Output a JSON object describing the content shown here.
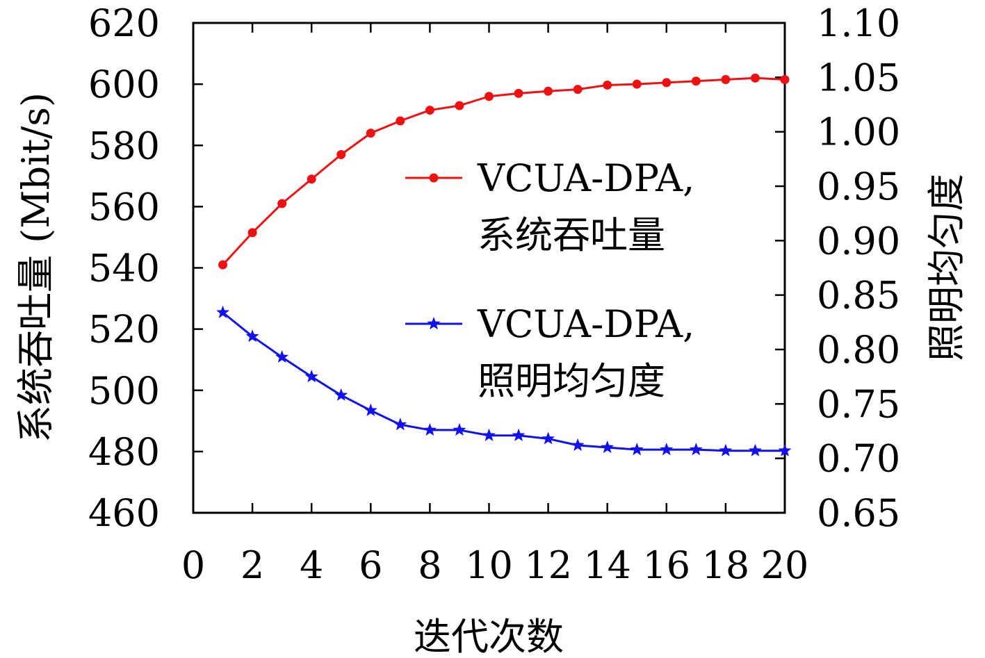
{
  "chart_data": {
    "type": "line",
    "xlabel": "迭代次数",
    "ylabel_left": "系统吞吐量 (Mbit/s)",
    "ylabel_right": "照明均匀度",
    "xlim": [
      0,
      20
    ],
    "ylim_left": [
      460,
      620
    ],
    "ylim_right": [
      0.65,
      1.1
    ],
    "x_ticks": [
      "0",
      "2",
      "4",
      "6",
      "8",
      "10",
      "12",
      "14",
      "16",
      "18",
      "20"
    ],
    "y_left_ticks": [
      "460",
      "480",
      "500",
      "520",
      "540",
      "560",
      "580",
      "600",
      "620"
    ],
    "y_right_ticks": [
      "0.65",
      "0.70",
      "0.75",
      "0.80",
      "0.85",
      "0.90",
      "0.95",
      "1.00",
      "1.05",
      "1.10"
    ],
    "grid": false,
    "legend_position": "right-center",
    "x": [
      1,
      2,
      3,
      4,
      5,
      6,
      7,
      8,
      9,
      10,
      11,
      12,
      13,
      14,
      15,
      16,
      17,
      18,
      19,
      20
    ],
    "series": [
      {
        "name": "VCUA-DPA,\n系统吞吐量",
        "legend_line1": "VCUA-DPA,",
        "legend_line2": "系统吞吐量",
        "axis": "left",
        "marker": "circle",
        "color": "#ee1111",
        "values": [
          541,
          551.5,
          561,
          569,
          577,
          584,
          588,
          591.5,
          593,
          596,
          597,
          597.7,
          598.3,
          599.7,
          600,
          600.5,
          601,
          601.5,
          602,
          601.5
        ]
      },
      {
        "name": "VCUA-DPA,\n照明均匀度",
        "legend_line1": "VCUA-DPA,",
        "legend_line2": "照明均匀度",
        "axis": "right",
        "marker": "star",
        "color": "#1111ee",
        "values": [
          0.834,
          0.812,
          0.793,
          0.775,
          0.758,
          0.744,
          0.731,
          0.726,
          0.726,
          0.721,
          0.721,
          0.718,
          0.712,
          0.71,
          0.708,
          0.708,
          0.708,
          0.707,
          0.707,
          0.707
        ]
      }
    ]
  }
}
